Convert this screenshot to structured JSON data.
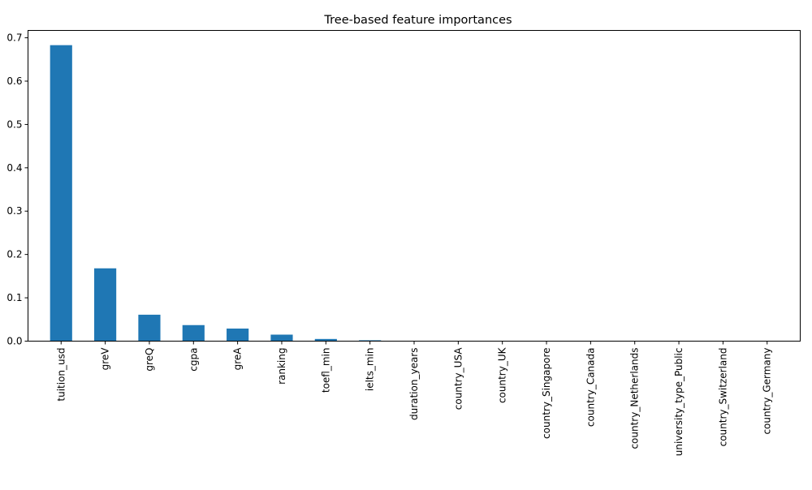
{
  "chart_data": {
    "type": "bar",
    "title": "Tree-based feature importances",
    "xlabel": "",
    "ylabel": "",
    "categories": [
      "tuition_usd",
      "greV",
      "greQ",
      "cgpa",
      "greA",
      "ranking",
      "toefl_min",
      "ielts_min",
      "duration_years",
      "country_USA",
      "country_UK",
      "country_Singapore",
      "country_Canada",
      "country_Netherlands",
      "university_type_Public",
      "country_Switzerland",
      "country_Germany"
    ],
    "values": [
      0.683,
      0.168,
      0.061,
      0.037,
      0.029,
      0.015,
      0.005,
      0.002,
      0.0,
      0.0,
      0.0,
      0.0,
      0.0,
      0.0,
      0.0,
      0.0,
      0.0
    ],
    "ylim": [
      0,
      0.717
    ],
    "yticks": [
      "0.0",
      "0.1",
      "0.2",
      "0.3",
      "0.4",
      "0.5",
      "0.6",
      "0.7"
    ],
    "grid": false,
    "legend": "none",
    "bar_color": "#1f77b4"
  }
}
